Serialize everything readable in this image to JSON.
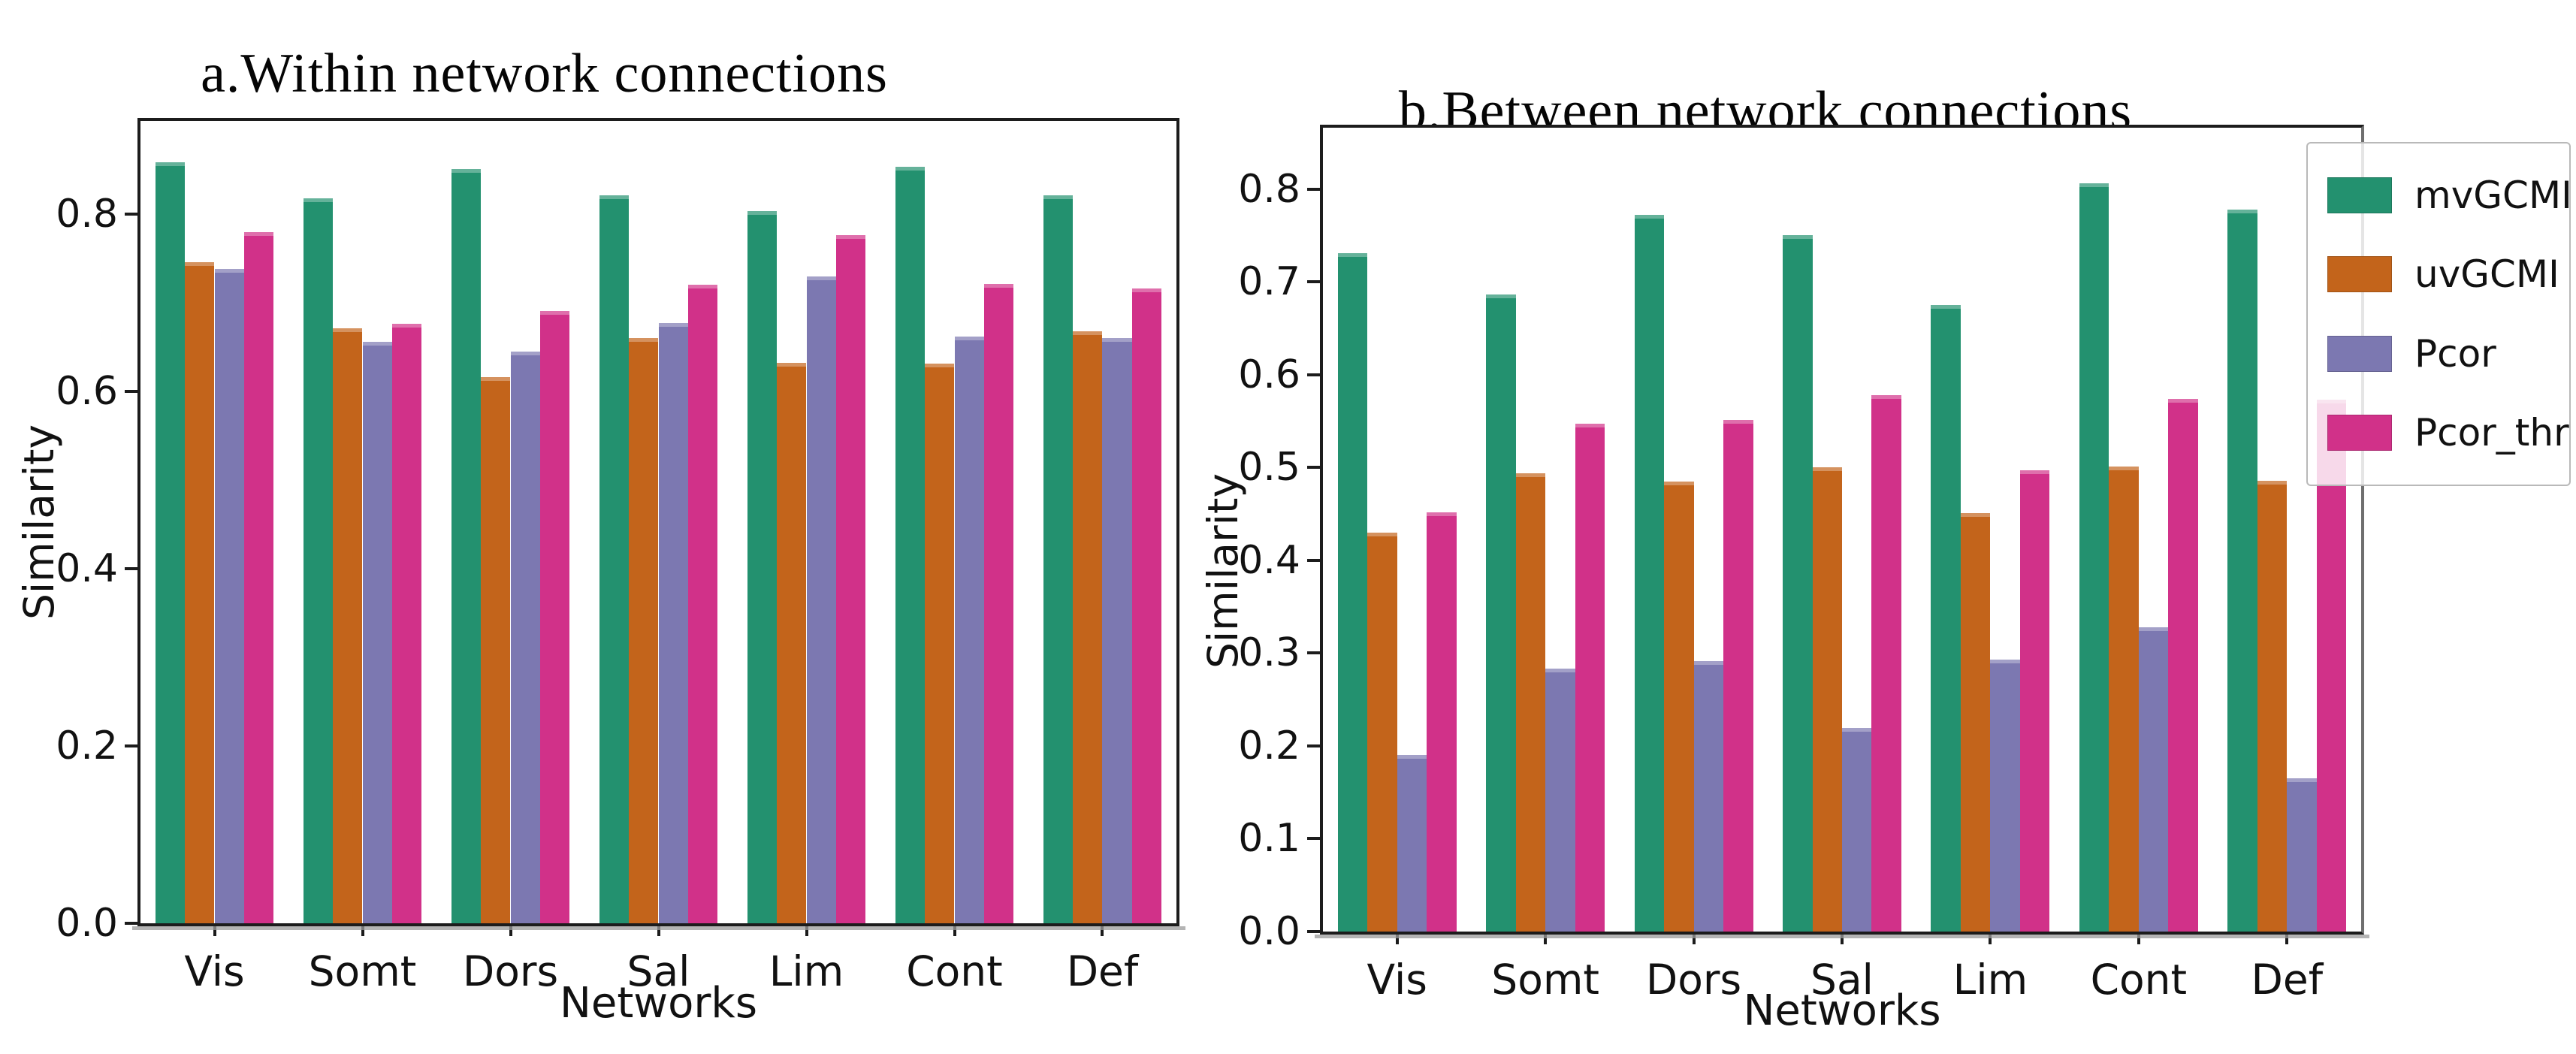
{
  "chart_data": [
    {
      "id": "a",
      "type": "bar",
      "title": "a.Within network connections",
      "xlabel": "Networks",
      "ylabel": "Similarity",
      "categories": [
        "Vis",
        "Somt",
        "Dors",
        "Sal",
        "Lim",
        "Cont",
        "Def"
      ],
      "series": [
        {
          "name": "mvGCMI",
          "color": "#23916f",
          "values": [
            0.858,
            0.818,
            0.851,
            0.821,
            0.803,
            0.853,
            0.821
          ]
        },
        {
          "name": "uvGCMI",
          "color": "#c3641b",
          "values": [
            0.746,
            0.671,
            0.616,
            0.66,
            0.632,
            0.631,
            0.668
          ]
        },
        {
          "name": "Pcor",
          "color": "#7c78b1",
          "values": [
            0.738,
            0.656,
            0.645,
            0.677,
            0.73,
            0.662,
            0.66
          ]
        },
        {
          "name": "Pcor_thr",
          "color": "#d13189",
          "values": [
            0.78,
            0.676,
            0.691,
            0.72,
            0.776,
            0.721,
            0.716
          ]
        }
      ],
      "ylim": [
        0,
        0.905
      ],
      "yticks": [
        0.0,
        0.2,
        0.4,
        0.6,
        0.8
      ],
      "ytick_labels": [
        "0.0",
        "0.2",
        "0.4",
        "0.6",
        "0.8"
      ],
      "grid": false,
      "legend": false
    },
    {
      "id": "b",
      "type": "bar",
      "title": "b.Between network connections",
      "xlabel": "Networks",
      "ylabel": "Similarity",
      "categories": [
        "Vis",
        "Somt",
        "Dors",
        "Sal",
        "Lim",
        "Cont",
        "Def"
      ],
      "series": [
        {
          "name": "mvGCMI",
          "color": "#23916f",
          "values": [
            0.731,
            0.686,
            0.772,
            0.75,
            0.675,
            0.806,
            0.778
          ]
        },
        {
          "name": "uvGCMI",
          "color": "#c3641b",
          "values": [
            0.43,
            0.494,
            0.485,
            0.5,
            0.451,
            0.501,
            0.486
          ]
        },
        {
          "name": "Pcor",
          "color": "#7c78b1",
          "values": [
            0.19,
            0.283,
            0.291,
            0.219,
            0.293,
            0.328,
            0.165
          ]
        },
        {
          "name": "Pcor_thr",
          "color": "#d13189",
          "values": [
            0.452,
            0.547,
            0.551,
            0.578,
            0.497,
            0.574,
            0.573
          ]
        }
      ],
      "ylim": [
        0,
        0.866
      ],
      "yticks": [
        0.0,
        0.1,
        0.2,
        0.3,
        0.4,
        0.5,
        0.6,
        0.7,
        0.8
      ],
      "ytick_labels": [
        "0.0",
        "0.1",
        "0.2",
        "0.3",
        "0.4",
        "0.5",
        "0.6",
        "0.7",
        "0.8"
      ],
      "grid": false,
      "legend": true,
      "legend_position": "upper right",
      "legend_entries": [
        "mvGCMI",
        "uvGCMI",
        "Pcor",
        "Pcor_thr"
      ]
    }
  ]
}
